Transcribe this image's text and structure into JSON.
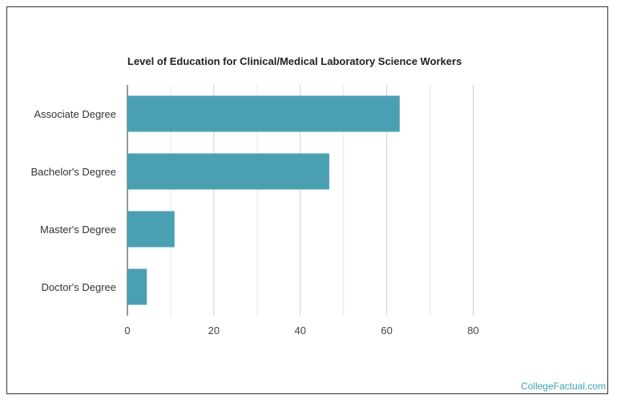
{
  "chart_data": {
    "type": "bar",
    "orientation": "horizontal",
    "title": "Level of Education for Clinical/Medical Laboratory Science Workers",
    "categories": [
      "Associate Degree",
      "Bachelor's Degree",
      "Master's Degree",
      "Doctor's Degree"
    ],
    "values": [
      63,
      46.7,
      10.9,
      4.5
    ],
    "xlabel": "",
    "ylabel": "",
    "xlim": [
      0,
      104
    ],
    "xticks": [
      0,
      20,
      40,
      60,
      80
    ],
    "grid": true,
    "bar_color": "#4aa0b2"
  },
  "credit": "CollegeFactual.com"
}
